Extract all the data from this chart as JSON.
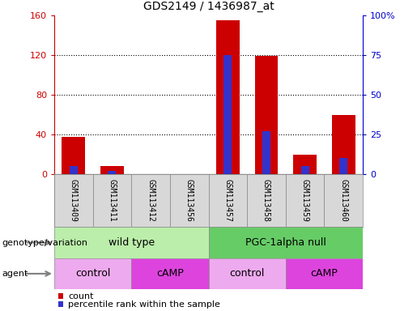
{
  "title": "GDS2149 / 1436987_at",
  "samples": [
    "GSM113409",
    "GSM113411",
    "GSM113412",
    "GSM113456",
    "GSM113457",
    "GSM113458",
    "GSM113459",
    "GSM113460"
  ],
  "counts": [
    38,
    8,
    0,
    0,
    155,
    119,
    20,
    60
  ],
  "percentile_ranks": [
    5,
    2,
    0,
    0,
    75,
    27,
    5,
    10
  ],
  "ylim_left": [
    0,
    160
  ],
  "ylim_right": [
    0,
    100
  ],
  "yticks_left": [
    0,
    40,
    80,
    120,
    160
  ],
  "yticks_right": [
    0,
    25,
    50,
    75,
    100
  ],
  "ytick_labels_left": [
    "0",
    "40",
    "80",
    "120",
    "160"
  ],
  "ytick_labels_right": [
    "0",
    "25",
    "50",
    "75",
    "100%"
  ],
  "bar_color_count": "#cc0000",
  "bar_color_percentile": "#3333cc",
  "background_color": "#ffffff",
  "plot_bg_color": "#ffffff",
  "sample_box_color": "#d8d8d8",
  "genotype_groups": [
    {
      "label": "wild type",
      "start": 0,
      "end": 4,
      "color": "#bbeeaa"
    },
    {
      "label": "PGC-1alpha null",
      "start": 4,
      "end": 8,
      "color": "#66cc66"
    }
  ],
  "agent_groups": [
    {
      "label": "control",
      "start": 0,
      "end": 2,
      "color": "#eeaaee"
    },
    {
      "label": "cAMP",
      "start": 2,
      "end": 4,
      "color": "#dd44dd"
    },
    {
      "label": "control",
      "start": 4,
      "end": 6,
      "color": "#eeaaee"
    },
    {
      "label": "cAMP",
      "start": 6,
      "end": 8,
      "color": "#dd44dd"
    }
  ],
  "legend_count_label": "count",
  "legend_percentile_label": "percentile rank within the sample",
  "genotype_label": "genotype/variation",
  "agent_label": "agent",
  "tick_color_left": "#cc0000",
  "tick_color_right": "#0000cc"
}
